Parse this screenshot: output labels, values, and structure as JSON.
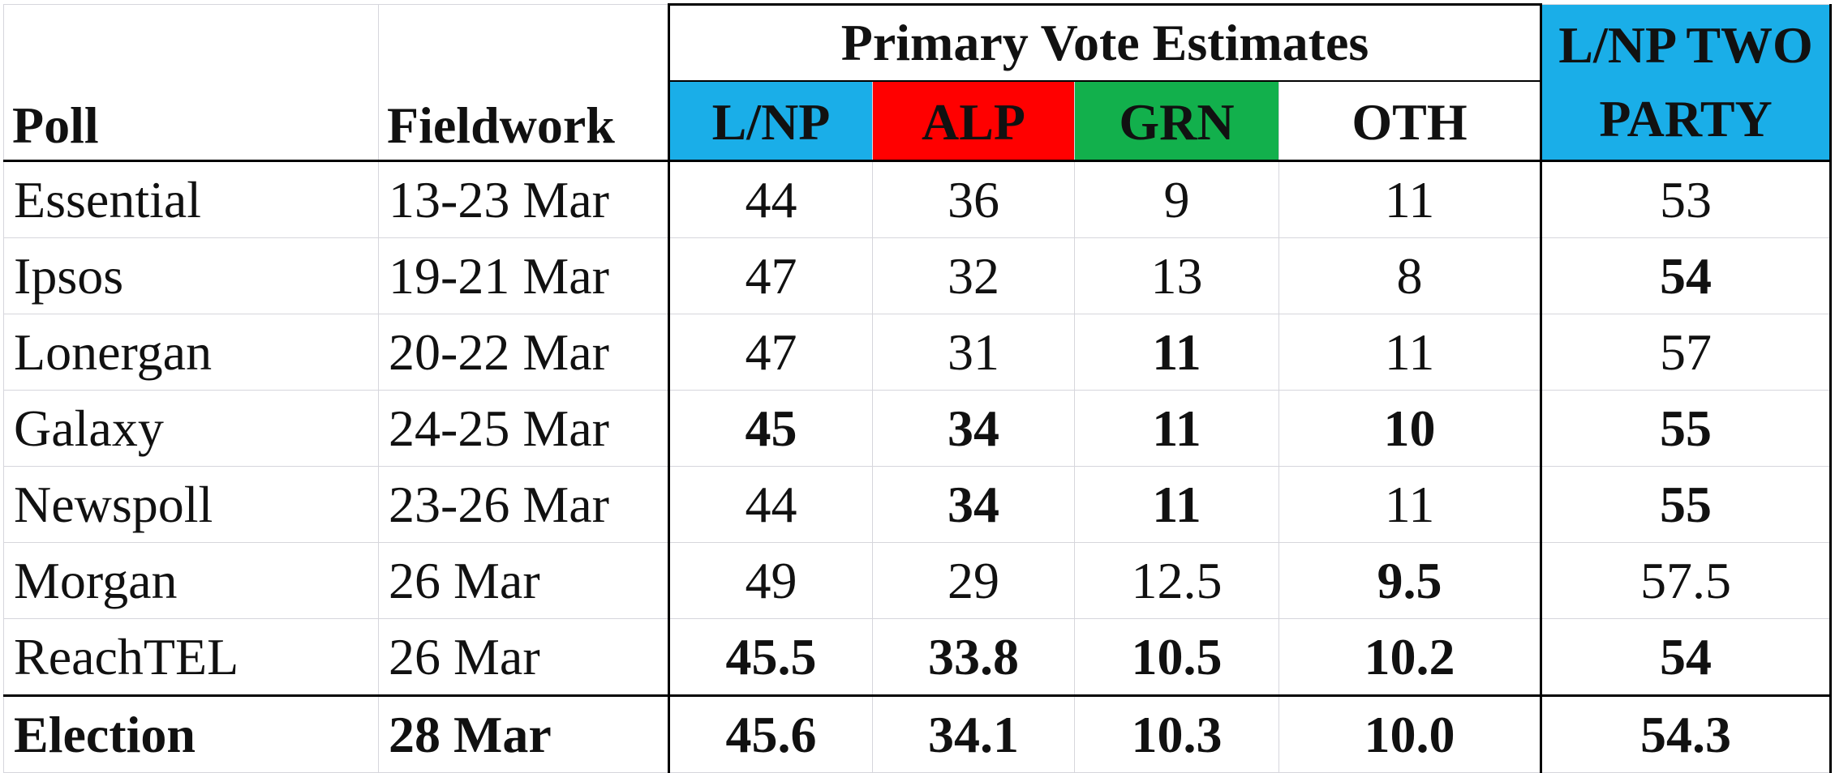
{
  "header": {
    "poll": "Poll",
    "fieldwork": "Fieldwork",
    "primary_vote_estimates": "Primary Vote Estimates",
    "lnp": "L/NP",
    "alp": "ALP",
    "grn": "GRN",
    "oth": "OTH",
    "tpp_line1": "L/NP TWO",
    "tpp_line2": "PARTY"
  },
  "colors": {
    "lnp": "#1aaee8",
    "alp": "#ff0000",
    "grn": "#12b04c",
    "tpp": "#1aaee8"
  },
  "rows": [
    {
      "poll": "Essential",
      "fieldwork": "13-23 Mar",
      "lnp": "44",
      "alp": "36",
      "grn": "9",
      "oth": "11",
      "tpp": "53"
    },
    {
      "poll": "Ipsos",
      "fieldwork": "19-21 Mar",
      "lnp": "47",
      "alp": "32",
      "grn": "13",
      "oth": "8",
      "tpp": "54"
    },
    {
      "poll": "Lonergan",
      "fieldwork": "20-22 Mar",
      "lnp": "47",
      "alp": "31",
      "grn": "11",
      "oth": "11",
      "tpp": "57"
    },
    {
      "poll": "Galaxy",
      "fieldwork": "24-25 Mar",
      "lnp": "45",
      "alp": "34",
      "grn": "11",
      "oth": "10",
      "tpp": "55"
    },
    {
      "poll": "Newspoll",
      "fieldwork": "23-26 Mar",
      "lnp": "44",
      "alp": "34",
      "grn": "11",
      "oth": "11",
      "tpp": "55"
    },
    {
      "poll": "Morgan",
      "fieldwork": "26 Mar",
      "lnp": "49",
      "alp": "29",
      "grn": "12.5",
      "oth": "9.5",
      "tpp": "57.5"
    },
    {
      "poll": "ReachTEL",
      "fieldwork": "26 Mar",
      "lnp": "45.5",
      "alp": "33.8",
      "grn": "10.5",
      "oth": "10.2",
      "tpp": "54"
    },
    {
      "poll": "Election",
      "fieldwork": "28 Mar",
      "lnp": "45.6",
      "alp": "34.1",
      "grn": "10.3",
      "oth": "10.0",
      "tpp": "54.3"
    }
  ]
}
